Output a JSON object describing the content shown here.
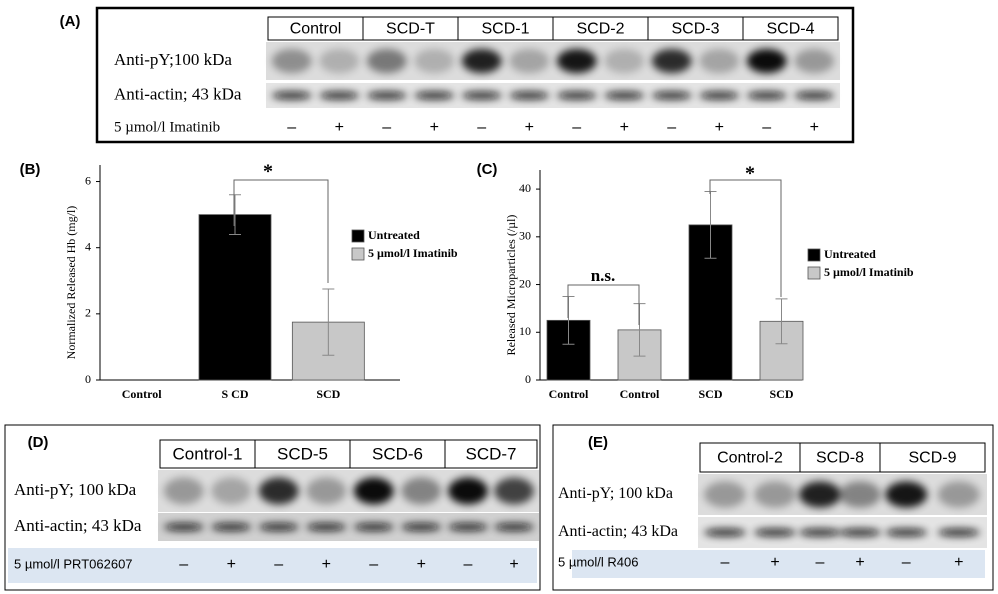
{
  "blots": [
    {
      "label": "(A)",
      "lanes": [
        "Control",
        "SCD-T",
        "SCD-1",
        "SCD-2",
        "SCD-3",
        "SCD-4"
      ],
      "rows": [
        "Anti-pY;100 kDa",
        "Anti-actin; 43 kDa"
      ],
      "treatment": "5 µmol/l Imatinib",
      "signs": [
        "–",
        "+",
        "–",
        "+",
        "–",
        "+",
        "–",
        "+",
        "–",
        "+",
        "–",
        "+"
      ]
    },
    {
      "label": "(D)",
      "lanes": [
        "Control-1",
        "SCD-5",
        "SCD-6",
        "SCD-7"
      ],
      "rows": [
        "Anti-pY; 100 kDa",
        "Anti-actin; 43 kDa"
      ],
      "treatment": "5 µmol/l PRT062607",
      "signs": [
        "–",
        "+",
        "–",
        "+",
        "–",
        "+",
        "–",
        "+"
      ]
    },
    {
      "label": "(E)",
      "lanes": [
        "Control-2",
        "SCD-8",
        "SCD-9"
      ],
      "rows": [
        "Anti-pY; 100 kDa",
        "Anti-actin; 43 kDa"
      ],
      "treatment": "5 µmol/l R406",
      "signs": [
        "–",
        "+",
        "–",
        "+",
        "–",
        "+"
      ]
    }
  ],
  "chart_data": [
    {
      "type": "bar",
      "label": "(B)",
      "ylabel": "Normalized Released Hb (mg/l)",
      "categories": [
        "Control",
        "S CD",
        "SCD"
      ],
      "series": [
        {
          "name": "Untreated",
          "color": "#000000",
          "values": [
            0,
            5,
            null
          ],
          "errors": [
            null,
            0.6,
            null
          ]
        },
        {
          "name": "5 µmol/l Imatinib",
          "color": "#c8c8c8",
          "values": [
            null,
            null,
            1.75
          ],
          "errors": [
            null,
            null,
            1.0
          ]
        }
      ],
      "ylim": [
        0,
        6.5
      ],
      "yticks": [
        0,
        2,
        4,
        6
      ],
      "annotations": [
        "*"
      ]
    },
    {
      "type": "bar",
      "label": "(C)",
      "ylabel": "Released Microparticles (/µl)",
      "categories": [
        "Control",
        "Control",
        "SCD",
        "SCD"
      ],
      "series": [
        {
          "name": "Untreated",
          "color": "#000000",
          "values": [
            12.5,
            null,
            32.5,
            null
          ],
          "errors": [
            5,
            null,
            7,
            null
          ]
        },
        {
          "name": "5 µmol/l Imatinib",
          "color": "#c8c8c8",
          "values": [
            null,
            10.5,
            null,
            12.3
          ],
          "errors": [
            null,
            5.5,
            null,
            4.7
          ]
        }
      ],
      "ylim": [
        0,
        44
      ],
      "yticks": [
        0,
        10,
        20,
        30,
        40
      ],
      "annotations": [
        "n.s.",
        "*"
      ]
    }
  ]
}
